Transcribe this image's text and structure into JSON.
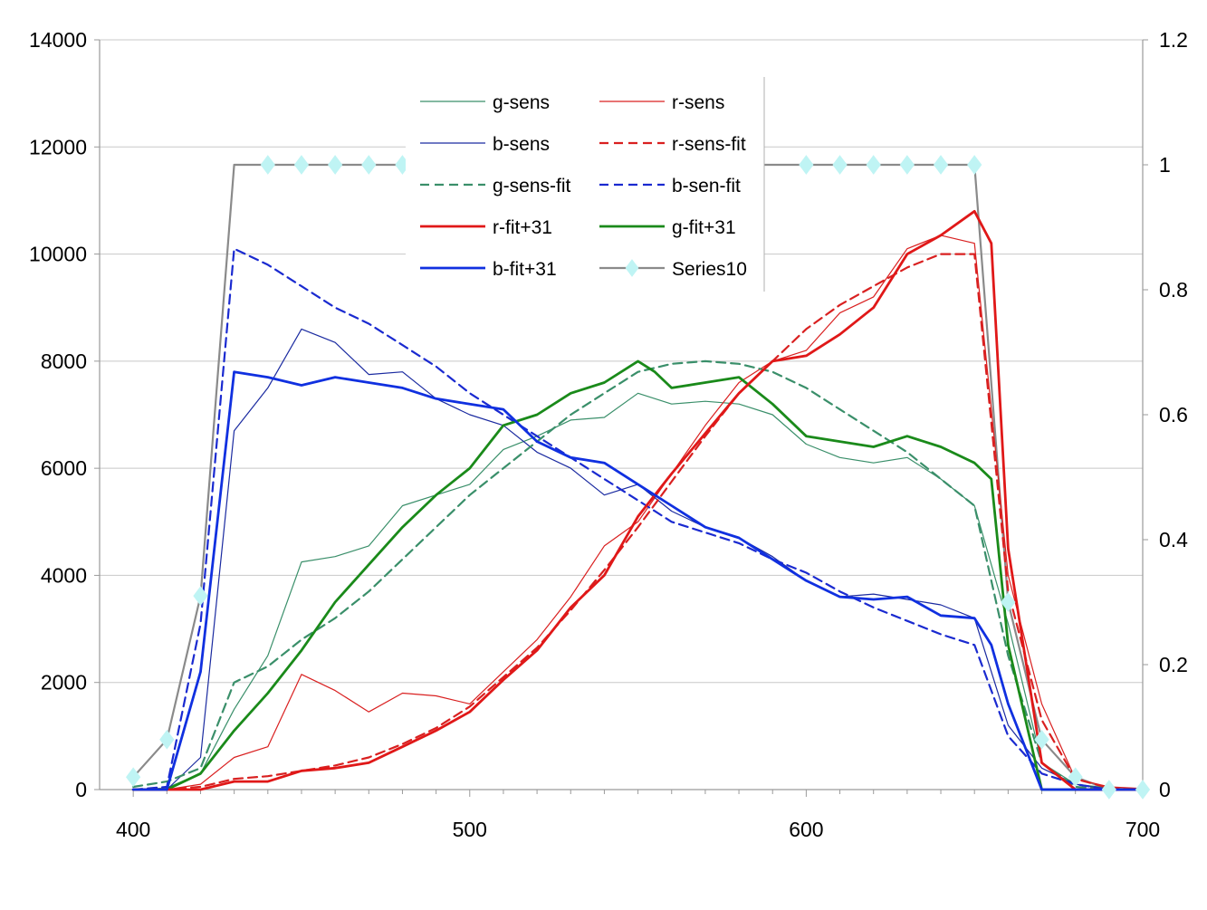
{
  "chart_data": {
    "type": "line",
    "title": "",
    "xlabel": "",
    "ylabel": "",
    "y2label": "",
    "xlim": [
      390,
      700
    ],
    "ylim": [
      0,
      14000
    ],
    "y2lim": [
      0,
      1.2
    ],
    "x_ticks": [
      400,
      500,
      600,
      700
    ],
    "x_tick_labels": [
      "400",
      "500",
      "600",
      "700"
    ],
    "y_ticks": [
      0,
      2000,
      4000,
      6000,
      8000,
      10000,
      12000,
      14000
    ],
    "y_tick_labels": [
      "0",
      "2000",
      "4000",
      "6000",
      "8000",
      "10000",
      "12000",
      "14000"
    ],
    "y2_ticks": [
      0,
      0.2,
      0.4,
      0.6,
      0.8,
      1,
      1.2
    ],
    "y2_tick_labels": [
      "0",
      "0.2",
      "0.4",
      "0.6",
      "0.8",
      "1",
      "1.2"
    ],
    "grid": "horizontal major lines",
    "legend_position": "top-center",
    "series": [
      {
        "name": "g-sens",
        "axis": "left",
        "color": "#3a8f6a",
        "style": "thin",
        "x": [
          400,
          410,
          420,
          430,
          440,
          450,
          460,
          470,
          480,
          490,
          500,
          510,
          520,
          530,
          540,
          550,
          560,
          570,
          580,
          590,
          600,
          610,
          620,
          630,
          640,
          650,
          660,
          670,
          680,
          690,
          700
        ],
        "y": [
          0,
          30,
          300,
          1500,
          2500,
          4250,
          4350,
          4550,
          5300,
          5500,
          5700,
          6350,
          6600,
          6900,
          6950,
          7400,
          7200,
          7250,
          7200,
          7000,
          6450,
          6200,
          6100,
          6200,
          5800,
          5300,
          3100,
          500,
          100,
          30,
          0
        ]
      },
      {
        "name": "r-sens",
        "axis": "left",
        "color": "#d92020",
        "style": "thin",
        "x": [
          400,
          410,
          420,
          430,
          440,
          450,
          460,
          470,
          480,
          490,
          500,
          510,
          520,
          530,
          540,
          550,
          560,
          570,
          580,
          590,
          600,
          610,
          620,
          630,
          640,
          650,
          660,
          670,
          680,
          690,
          700
        ],
        "y": [
          0,
          0,
          100,
          600,
          800,
          2150,
          1850,
          1450,
          1800,
          1750,
          1600,
          2200,
          2800,
          3600,
          4550,
          5000,
          5900,
          6800,
          7600,
          8000,
          8200,
          8900,
          9200,
          10100,
          10350,
          10200,
          4000,
          1600,
          200,
          50,
          20
        ]
      },
      {
        "name": "b-sens",
        "axis": "left",
        "color": "#1a2aa0",
        "style": "thin",
        "x": [
          400,
          410,
          420,
          430,
          440,
          450,
          460,
          470,
          480,
          490,
          500,
          510,
          520,
          530,
          540,
          550,
          560,
          570,
          580,
          590,
          600,
          610,
          620,
          630,
          640,
          650,
          660,
          670,
          680,
          690,
          700
        ],
        "y": [
          0,
          0,
          600,
          6700,
          7500,
          8600,
          8350,
          7750,
          7800,
          7300,
          7000,
          6800,
          6300,
          6000,
          5500,
          5700,
          5200,
          4900,
          4700,
          4350,
          3900,
          3600,
          3650,
          3550,
          3450,
          3200,
          1200,
          400,
          100,
          0,
          0
        ]
      },
      {
        "name": "r-sens-fit",
        "axis": "left",
        "color": "#d92020",
        "style": "dashed",
        "x": [
          400,
          410,
          420,
          430,
          440,
          450,
          460,
          470,
          480,
          490,
          500,
          510,
          520,
          530,
          540,
          550,
          560,
          570,
          580,
          590,
          600,
          610,
          620,
          630,
          640,
          650,
          660,
          670,
          680,
          690,
          700
        ],
        "y": [
          0,
          0,
          50,
          200,
          250,
          350,
          450,
          600,
          850,
          1150,
          1550,
          2100,
          2650,
          3350,
          4100,
          4900,
          5750,
          6600,
          7400,
          8000,
          8600,
          9050,
          9400,
          9750,
          10000,
          10000,
          3700,
          1300,
          200,
          30,
          0
        ]
      },
      {
        "name": "g-sens-fit",
        "axis": "left",
        "color": "#3a8f6a",
        "style": "dashed",
        "x": [
          400,
          410,
          420,
          430,
          440,
          450,
          460,
          470,
          480,
          490,
          500,
          510,
          520,
          530,
          540,
          550,
          560,
          570,
          580,
          590,
          600,
          610,
          620,
          630,
          640,
          650,
          660,
          670,
          680,
          690,
          700
        ],
        "y": [
          50,
          150,
          400,
          2000,
          2300,
          2800,
          3200,
          3700,
          4300,
          4900,
          5500,
          6000,
          6500,
          7000,
          7400,
          7800,
          7950,
          8000,
          7950,
          7800,
          7500,
          7100,
          6700,
          6300,
          5800,
          5300,
          2500,
          500,
          50,
          0,
          0
        ]
      },
      {
        "name": "b-sen-fit",
        "axis": "left",
        "color": "#1a2ad0",
        "style": "dashed",
        "x": [
          400,
          410,
          420,
          430,
          440,
          450,
          460,
          470,
          480,
          490,
          500,
          510,
          520,
          530,
          540,
          550,
          560,
          570,
          580,
          590,
          600,
          610,
          620,
          630,
          640,
          650,
          660,
          670,
          680,
          690,
          700
        ],
        "y": [
          0,
          50,
          3100,
          10100,
          9800,
          9400,
          9000,
          8700,
          8300,
          7900,
          7400,
          7000,
          6600,
          6200,
          5800,
          5400,
          5000,
          4800,
          4600,
          4300,
          4050,
          3700,
          3400,
          3150,
          2900,
          2700,
          1000,
          300,
          100,
          0,
          0
        ]
      },
      {
        "name": "r-fit+31",
        "axis": "left",
        "color": "#e01818",
        "style": "thick",
        "x": [
          400,
          410,
          420,
          430,
          440,
          450,
          460,
          470,
          480,
          490,
          500,
          510,
          520,
          530,
          540,
          550,
          560,
          570,
          580,
          590,
          600,
          610,
          620,
          630,
          640,
          650,
          655,
          660,
          670,
          680,
          690,
          700
        ],
        "y": [
          0,
          0,
          0,
          150,
          150,
          350,
          400,
          500,
          800,
          1100,
          1450,
          2050,
          2600,
          3400,
          4000,
          5100,
          5900,
          6650,
          7400,
          8000,
          8100,
          8500,
          9000,
          10000,
          10350,
          10800,
          10200,
          4500,
          500,
          0,
          0,
          0
        ]
      },
      {
        "name": "g-fit+31",
        "axis": "left",
        "color": "#1a8a1a",
        "style": "thick",
        "x": [
          400,
          410,
          420,
          430,
          440,
          450,
          460,
          470,
          480,
          490,
          500,
          510,
          520,
          530,
          540,
          550,
          555,
          560,
          570,
          580,
          590,
          600,
          610,
          620,
          630,
          640,
          650,
          655,
          660,
          670,
          680,
          690,
          700
        ],
        "y": [
          0,
          0,
          300,
          1100,
          1800,
          2600,
          3500,
          4200,
          4900,
          5500,
          6000,
          6800,
          7000,
          7400,
          7600,
          8000,
          7800,
          7500,
          7600,
          7700,
          7200,
          6600,
          6500,
          6400,
          6600,
          6400,
          6100,
          5800,
          2700,
          0,
          0,
          0,
          0
        ]
      },
      {
        "name": "b-fit+31",
        "axis": "left",
        "color": "#1030e0",
        "style": "thick",
        "x": [
          400,
          410,
          420,
          430,
          440,
          450,
          460,
          470,
          480,
          490,
          500,
          510,
          520,
          530,
          540,
          550,
          560,
          570,
          580,
          590,
          600,
          610,
          620,
          630,
          640,
          650,
          655,
          660,
          670,
          680,
          690,
          700
        ],
        "y": [
          0,
          0,
          2200,
          7800,
          7700,
          7550,
          7700,
          7600,
          7500,
          7300,
          7200,
          7100,
          6500,
          6200,
          6100,
          5700,
          5300,
          4900,
          4700,
          4300,
          3900,
          3600,
          3550,
          3600,
          3250,
          3200,
          2700,
          1600,
          0,
          0,
          0,
          0
        ]
      },
      {
        "name": "Series10",
        "axis": "right",
        "color": "#8a8a8a",
        "style": "line-marker",
        "marker_color": "#bff4f4",
        "x": [
          400,
          410,
          420,
          430,
          440,
          450,
          460,
          470,
          480,
          490,
          500,
          510,
          520,
          530,
          540,
          550,
          560,
          570,
          580,
          590,
          600,
          610,
          620,
          630,
          640,
          650,
          660,
          670,
          680,
          690,
          700
        ],
        "y": [
          0.02,
          0.08,
          0.31,
          1,
          1,
          1,
          1,
          1,
          1,
          1,
          1,
          1,
          1,
          1,
          1,
          1,
          1,
          1,
          1,
          1,
          1,
          1,
          1,
          1,
          1,
          1,
          0.3,
          0.08,
          0.02,
          0,
          0
        ],
        "visible_markers_x": [
          400,
          410,
          420,
          440,
          450,
          460,
          470,
          480,
          600,
          610,
          620,
          630,
          640,
          650,
          660,
          670,
          680,
          690,
          700
        ]
      }
    ],
    "legend_entries": [
      {
        "label": "g-sens",
        "series_index": 0
      },
      {
        "label": "r-sens",
        "series_index": 1
      },
      {
        "label": "b-sens",
        "series_index": 2
      },
      {
        "label": "r-sens-fit",
        "series_index": 3
      },
      {
        "label": "g-sens-fit",
        "series_index": 4
      },
      {
        "label": "b-sen-fit",
        "series_index": 5
      },
      {
        "label": "r-fit+31",
        "series_index": 6
      },
      {
        "label": "g-fit+31",
        "series_index": 7
      },
      {
        "label": "b-fit+31",
        "series_index": 8
      },
      {
        "label": "Series10",
        "series_index": 9
      }
    ]
  }
}
